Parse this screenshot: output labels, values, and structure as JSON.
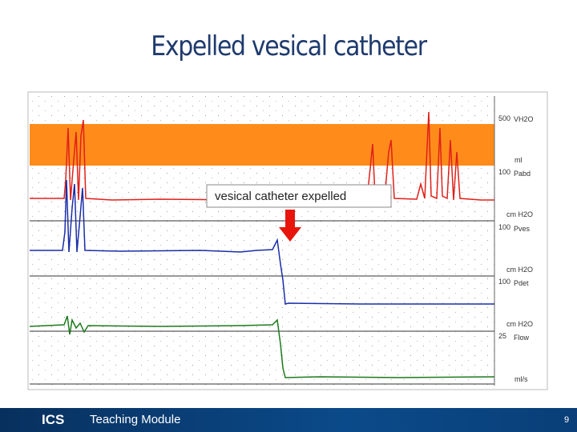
{
  "title": "Expelled vesical catheter",
  "annotation": "vesical catheter expelled",
  "channels": [
    {
      "scale": "500",
      "name": "VH2O",
      "unit": "ml"
    },
    {
      "scale": "100",
      "name": "Pabd",
      "unit": "cm H2O"
    },
    {
      "scale": "100",
      "name": "Pves",
      "unit": "cm H2O"
    },
    {
      "scale": "100",
      "name": "Pdet",
      "unit": "cm H2O"
    },
    {
      "scale": "25",
      "name": "Flow",
      "unit": "ml/s"
    }
  ],
  "footer": {
    "logo": "ICS",
    "label": "Teaching Module",
    "page": "9"
  }
}
